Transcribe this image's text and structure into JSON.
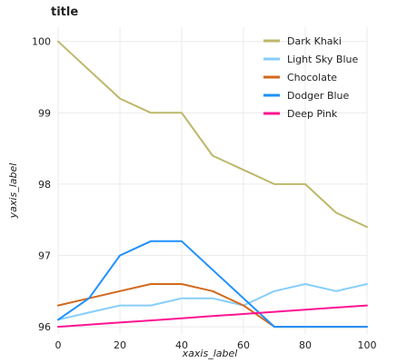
{
  "chart_data": {
    "type": "line",
    "title": "title",
    "xlabel": "xaxis_label",
    "ylabel": "yaxis_label",
    "xlim": [
      0,
      100
    ],
    "ylim": [
      95.9,
      100.2
    ],
    "xticks": [
      0,
      20,
      40,
      60,
      80,
      100
    ],
    "yticks": [
      96,
      97,
      98,
      99,
      100
    ],
    "grid": true,
    "legend_position": "top-right",
    "x": [
      0,
      10,
      20,
      30,
      40,
      50,
      60,
      70,
      80,
      90,
      100
    ],
    "series": [
      {
        "name": "Dark Khaki",
        "color": "#bdb76b",
        "values": [
          100.0,
          99.6,
          99.2,
          99.0,
          99.0,
          98.4,
          98.2,
          98.0,
          98.0,
          97.6,
          97.4
        ]
      },
      {
        "name": "Light Sky Blue",
        "color": "#87cefa",
        "values": [
          96.1,
          96.2,
          96.3,
          96.3,
          96.4,
          96.4,
          96.3,
          96.5,
          96.6,
          96.5,
          96.6
        ]
      },
      {
        "name": "Chocolate",
        "color": "#d2691e",
        "values": [
          96.3,
          96.4,
          96.5,
          96.6,
          96.6,
          96.5,
          96.3,
          96.0,
          96.0,
          96.0,
          96.0
        ]
      },
      {
        "name": "Dodger Blue",
        "color": "#1e90ff",
        "values": [
          96.1,
          96.4,
          97.0,
          97.2,
          97.2,
          96.8,
          96.4,
          96.0,
          96.0,
          96.0,
          96.0
        ]
      },
      {
        "name": "Deep Pink",
        "color": "#ff1493",
        "values": [
          96.0,
          96.03,
          96.06,
          96.09,
          96.12,
          96.15,
          96.18,
          96.21,
          96.24,
          96.27,
          96.3
        ]
      }
    ]
  }
}
